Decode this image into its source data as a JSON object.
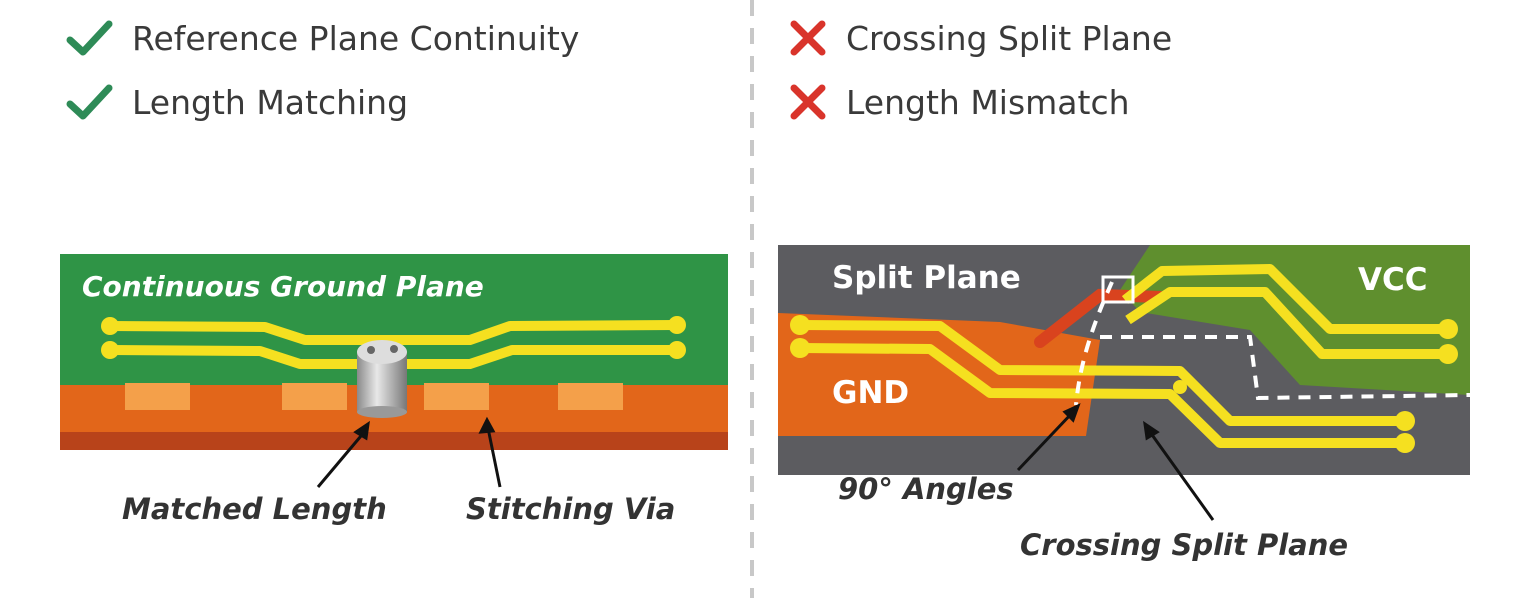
{
  "good": {
    "items": [
      {
        "label": "Reference Plane Continuity",
        "icon": "check-icon",
        "color": "#2e8b57"
      },
      {
        "label": "Length Matching",
        "icon": "check-icon",
        "color": "#2e8b57"
      }
    ],
    "board_title": "Continuous Ground Plane",
    "callouts": [
      "Matched Length",
      "Stitching Via"
    ]
  },
  "bad": {
    "items": [
      {
        "label": "Crossing Split Plane",
        "icon": "x-icon",
        "color": "#d9342b"
      },
      {
        "label": "Length Mismatch",
        "icon": "x-icon",
        "color": "#d9342b"
      }
    ],
    "labels": {
      "split": "Split Plane",
      "vcc": "VCC",
      "gnd": "GND"
    },
    "callouts": [
      "90° Angles",
      "Crossing Split Plane"
    ]
  },
  "colors": {
    "ground_green": "#2f9446",
    "copper_orange": "#e2661a",
    "trace_yellow": "#f5e020",
    "split_gray": "#5c5c60",
    "vcc_green": "#5f8f2e"
  }
}
